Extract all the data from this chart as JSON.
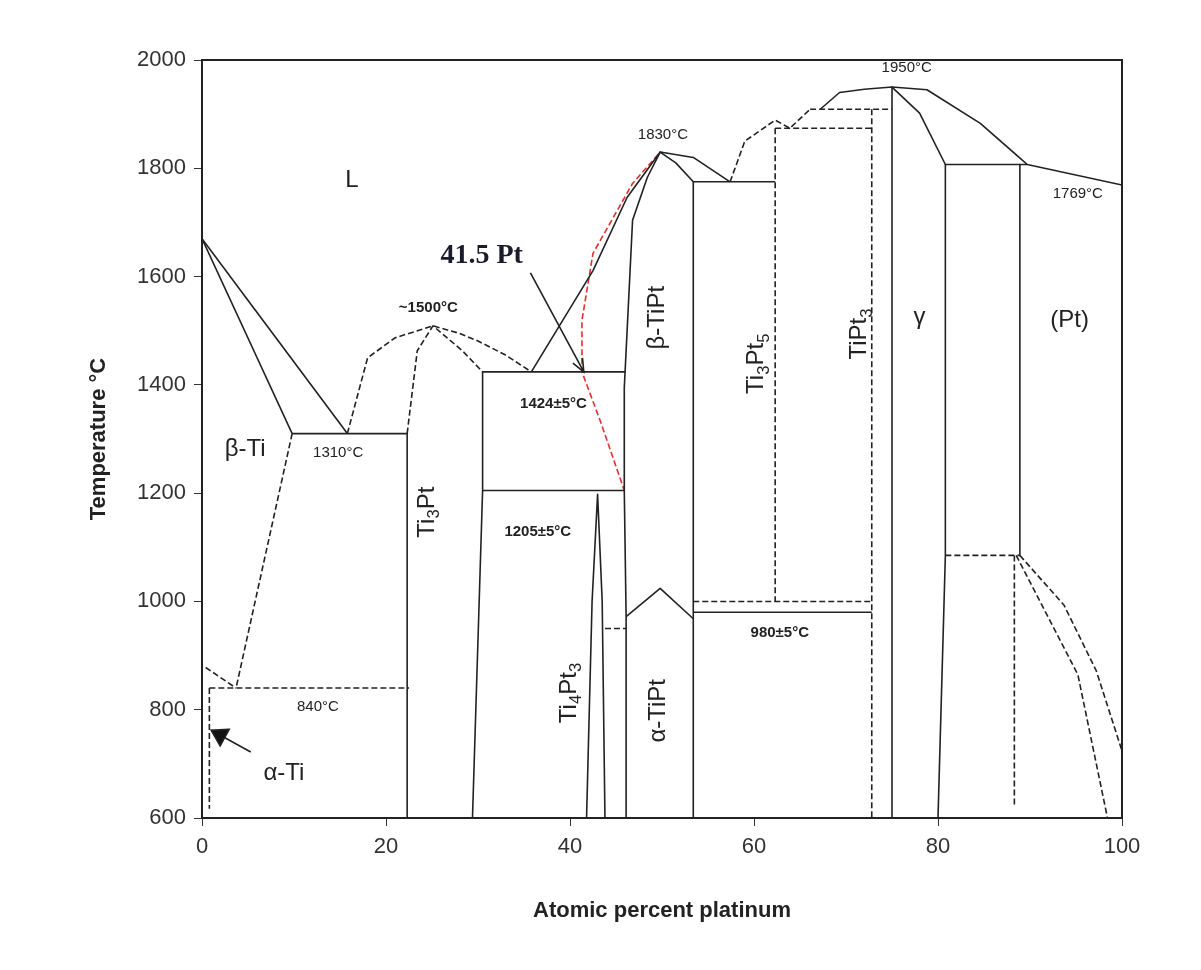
{
  "chart_data": {
    "type": "line",
    "xlabel": "Atomic percent platinum",
    "ylabel": "Temperature °C",
    "xlim": [
      0,
      100
    ],
    "xticks": [
      0,
      20,
      40,
      60,
      80,
      100
    ],
    "ylim": [
      600,
      2000
    ],
    "yticks": [
      600,
      800,
      1000,
      1200,
      1400,
      1600,
      1800,
      2000
    ],
    "legend": false,
    "marker": "none",
    "series": [
      {
        "x": [
          0,
          15.8
        ],
        "values": [
          1670,
          1310
        ],
        "color": "#222222",
        "line_style": "solid"
      },
      {
        "x": [
          0,
          9.8
        ],
        "values": [
          1670,
          1310
        ],
        "color": "#222222",
        "line_style": "solid"
      },
      {
        "x": [
          9.8,
          22.3
        ],
        "values": [
          1310,
          1310
        ],
        "color": "#222222",
        "line_style": "solid"
      },
      {
        "x": [
          9.8,
          3.7
        ],
        "values": [
          1310,
          840
        ],
        "color": "#222222",
        "line_style": "dashed"
      },
      {
        "x": [
          0.4,
          3.7
        ],
        "values": [
          878,
          840
        ],
        "color": "#222222",
        "line_style": "dashed"
      },
      {
        "x": [
          0.8,
          0.8
        ],
        "values": [
          840,
          617
        ],
        "color": "#222222",
        "line_style": "dashed"
      },
      {
        "x": [
          0.8,
          22.5
        ],
        "values": [
          840,
          840
        ],
        "color": "#222222",
        "line_style": "dashed"
      },
      {
        "x": [
          22.3,
          22.3
        ],
        "values": [
          1310,
          600
        ],
        "color": "#222222",
        "line_style": "solid"
      },
      {
        "x": [
          15.8,
          18,
          21,
          25.1,
          28,
          30,
          33,
          35.8
        ],
        "values": [
          1310,
          1450,
          1487,
          1509,
          1495,
          1481,
          1455,
          1424
        ],
        "color": "#222222",
        "line_style": "dashed"
      },
      {
        "x": [
          22.3,
          23.4,
          25.1,
          28.3,
          30.5
        ],
        "values": [
          1310,
          1463,
          1509,
          1463,
          1424
        ],
        "color": "#222222",
        "line_style": "dashed"
      },
      {
        "x": [
          30.5,
          46
        ],
        "values": [
          1424,
          1424
        ],
        "color": "#222222",
        "line_style": "solid"
      },
      {
        "x": [
          30.5,
          30.5,
          29.4
        ],
        "values": [
          1424,
          1205,
          600
        ],
        "color": "#222222",
        "line_style": "solid"
      },
      {
        "x": [
          30.5,
          45.9
        ],
        "values": [
          1205,
          1205
        ],
        "color": "#222222",
        "line_style": "solid"
      },
      {
        "x": [
          35.8,
          42.5,
          46.2,
          49.8,
          53.4,
          57.4
        ],
        "values": [
          1424,
          1611,
          1746,
          1830,
          1820,
          1775
        ],
        "color": "#222222",
        "line_style": "solid"
      },
      {
        "x": [
          53.4,
          51.5,
          49.8,
          48.4,
          46.8,
          45.9,
          45.9,
          46.1,
          46.1
        ],
        "values": [
          1775,
          1810,
          1830,
          1783,
          1704,
          1394,
          1205,
          972,
          600
        ],
        "color": "#222222",
        "line_style": "solid"
      },
      {
        "x": [
          53.4,
          53.4
        ],
        "values": [
          1775,
          600
        ],
        "color": "#222222",
        "line_style": "solid"
      },
      {
        "x": [
          53.4,
          62.3
        ],
        "values": [
          1775,
          1775
        ],
        "color": "#222222",
        "line_style": "solid"
      },
      {
        "x": [
          57.4,
          59,
          62.3,
          63.9,
          66.1
        ],
        "values": [
          1775,
          1850,
          1889,
          1874,
          1909
        ],
        "color": "#222222",
        "line_style": "dashed"
      },
      {
        "x": [
          62.3,
          72.8
        ],
        "values": [
          1874,
          1874
        ],
        "color": "#222222",
        "line_style": "dashed"
      },
      {
        "x": [
          62.3,
          62.3
        ],
        "values": [
          1874,
          1000
        ],
        "color": "#222222",
        "line_style": "dashed"
      },
      {
        "x": [
          66.1,
          75
        ],
        "values": [
          1909,
          1909
        ],
        "color": "#222222",
        "line_style": "dashed"
      },
      {
        "x": [
          72.8,
          72.8
        ],
        "values": [
          1909,
          600
        ],
        "color": "#222222",
        "line_style": "dashed"
      },
      {
        "x": [
          67.2,
          69.3,
          72,
          75,
          78.8,
          84.6,
          89.7,
          100
        ],
        "values": [
          1909,
          1940,
          1946,
          1950,
          1945,
          1883,
          1807,
          1769
        ],
        "color": "#222222",
        "line_style": "solid"
      },
      {
        "x": [
          75,
          75,
          78,
          80.8
        ],
        "values": [
          600,
          1950,
          1902,
          1807
        ],
        "color": "#222222",
        "line_style": "solid"
      },
      {
        "x": [
          89.7,
          80.8,
          80.8,
          80
        ],
        "values": [
          1807,
          1807,
          1085,
          600
        ],
        "color": "#222222",
        "line_style": "solid"
      },
      {
        "x": [
          88.9,
          88.9
        ],
        "values": [
          1807,
          1085
        ],
        "color": "#222222",
        "line_style": "solid"
      },
      {
        "x": [
          80.8,
          88.9
        ],
        "values": [
          1085,
          1085
        ],
        "color": "#222222",
        "line_style": "dashed"
      },
      {
        "x": [
          88.3,
          88.3
        ],
        "values": [
          1085,
          620
        ],
        "color": "#222222",
        "line_style": "dashed"
      },
      {
        "x": [
          88.5,
          91.3,
          95.2,
          98.4
        ],
        "values": [
          1085,
          993,
          865,
          602
        ],
        "color": "#222222",
        "line_style": "dashed"
      },
      {
        "x": [
          88.9,
          93.7,
          97.2,
          100
        ],
        "values": [
          1085,
          993,
          872,
          724
        ],
        "color": "#222222",
        "line_style": "dashed"
      },
      {
        "x": [
          41.8,
          42.4,
          43,
          43.5,
          43.8
        ],
        "values": [
          600,
          1000,
          1198,
          1000,
          600
        ],
        "color": "#222222",
        "line_style": "solid"
      },
      {
        "x": [
          43.8,
          46.1
        ],
        "values": [
          950,
          950
        ],
        "color": "#222222",
        "line_style": "dashed"
      },
      {
        "x": [
          46.1,
          49.8,
          53.4
        ],
        "values": [
          972,
          1024,
          968
        ],
        "color": "#222222",
        "line_style": "solid"
      },
      {
        "x": [
          53.4,
          72.8
        ],
        "values": [
          1000,
          1000
        ],
        "color": "#222222",
        "line_style": "dashed"
      },
      {
        "x": [
          53.4,
          72.8
        ],
        "values": [
          980,
          980
        ],
        "color": "#222222",
        "line_style": "solid"
      },
      {
        "x": [
          49.6,
          46.8,
          42.5,
          41.3,
          41.3,
          43.3,
          45.9
        ],
        "values": [
          1826,
          1772,
          1643,
          1519,
          1424,
          1333,
          1205
        ],
        "color": "#e03030",
        "line_style": "dashed"
      }
    ],
    "annotations": [
      "L",
      {
        "text": "41.5 Pt",
        "x": 41.5,
        "y": 1424
      },
      "~1500°C",
      "1310°C",
      "β-Ti",
      "840°C",
      "α-Ti",
      "1424±5°C",
      "1205±5°C",
      "1830°C",
      "980±5°C",
      "1950°C",
      "γ",
      "(Pt)",
      "1769°C",
      "Ti$_{3}$Pt",
      "β-TiPt",
      "Ti$_{3}$Pt$_{5}$",
      "Ti$_{4}$Pt$_{3}$",
      "α-TiPt",
      "TiPt$_{3}$"
    ]
  }
}
